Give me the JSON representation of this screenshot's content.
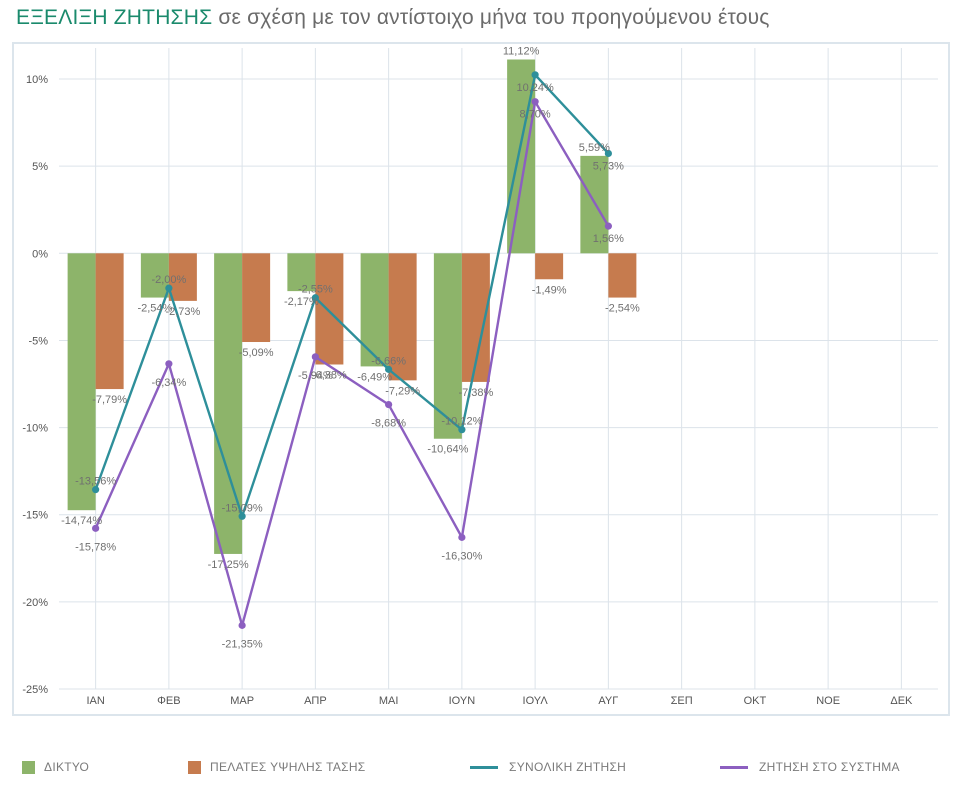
{
  "title": {
    "highlight": "ΕΞΕΛΙΞΗ ΖΗΤΗΣΗΣ",
    "rest": " σε σχέση με τον αντίστοιχο μήνα του προηγούμενου έτους"
  },
  "colors": {
    "title_accent": "#1a8a6c",
    "diktyo": "#8db46a",
    "pelates": "#c67b4e",
    "synoliki": "#2e8f9a",
    "systima": "#8c5fc0",
    "grid": "#dce3ea",
    "tick_text": "#555555",
    "label_text": "#707070"
  },
  "chart_data": {
    "type": "bar",
    "categories": [
      "ΙΑΝ",
      "ΦΕΒ",
      "ΜΑΡ",
      "ΑΠΡ",
      "ΜΑΙ",
      "ΙΟΥΝ",
      "ΙΟΥΛ",
      "ΑΥΓ",
      "ΣΕΠ",
      "ΟΚΤ",
      "ΝΟΕ",
      "ΔΕΚ"
    ],
    "ylim": [
      -25,
      12
    ],
    "yticks": [
      10,
      5,
      0,
      -5,
      -10,
      -15,
      -20,
      -25
    ],
    "ytick_labels": [
      "10%",
      "5%",
      "0%",
      "-5%",
      "-10%",
      "-15%",
      "-20%",
      "-25%"
    ],
    "grid": true,
    "legend_position": "bottom",
    "series": [
      {
        "name": "ΔΙΚΤΥΟ",
        "kind": "bar",
        "color": "#8db46a",
        "values": [
          -14.74,
          -2.54,
          -17.25,
          -2.17,
          -6.49,
          -10.64,
          11.12,
          5.59,
          null,
          null,
          null,
          null
        ],
        "labels": [
          "-14,74%",
          "-2,54%",
          "-17,25%",
          "-2,17%",
          "-6,49%",
          "-10,64%",
          "11,12%",
          "5,59%",
          null,
          null,
          null,
          null
        ]
      },
      {
        "name": "ΠΕΛΑΤΕΣ ΥΨΗΛΗΣ ΤΑΣΗΣ",
        "kind": "bar",
        "color": "#c67b4e",
        "values": [
          -7.79,
          -2.73,
          -5.09,
          -6.38,
          -7.29,
          -7.38,
          -1.49,
          -2.54,
          null,
          null,
          null,
          null
        ],
        "labels": [
          "-7,79%",
          "-2,73%",
          "-5,09%",
          "-6,38%",
          "-7,29%",
          "-7,38%",
          "-1,49%",
          "-2,54%",
          null,
          null,
          null,
          null
        ]
      },
      {
        "name": "ΣΥΝΟΛΙΚΗ ΖΗΤΗΣΗ",
        "kind": "line",
        "color": "#2e8f9a",
        "values": [
          -13.56,
          -2.0,
          -15.09,
          -2.55,
          -6.66,
          -10.12,
          10.24,
          5.73,
          null,
          null,
          null,
          null
        ],
        "labels": [
          "-13,56%",
          "-2,00%",
          "-15,09%",
          "-2,55%",
          "-6,66%",
          "-10,12%",
          "10,24%",
          "5,73%",
          null,
          null,
          null,
          null
        ]
      },
      {
        "name": "ΖΗΤΗΣΗ ΣΤΟ ΣΥΣΤΗΜΑ",
        "kind": "line",
        "color": "#8c5fc0",
        "values": [
          -15.78,
          -6.34,
          -21.35,
          -5.94,
          -8.68,
          -16.3,
          8.7,
          1.56,
          null,
          null,
          null,
          null
        ],
        "labels": [
          "-15,78%",
          "-6,34%",
          "-21,35%",
          "-5,94%",
          "-8,68%",
          "-16,30%",
          "8,70%",
          "1,56%",
          null,
          null,
          null,
          null
        ]
      }
    ]
  }
}
